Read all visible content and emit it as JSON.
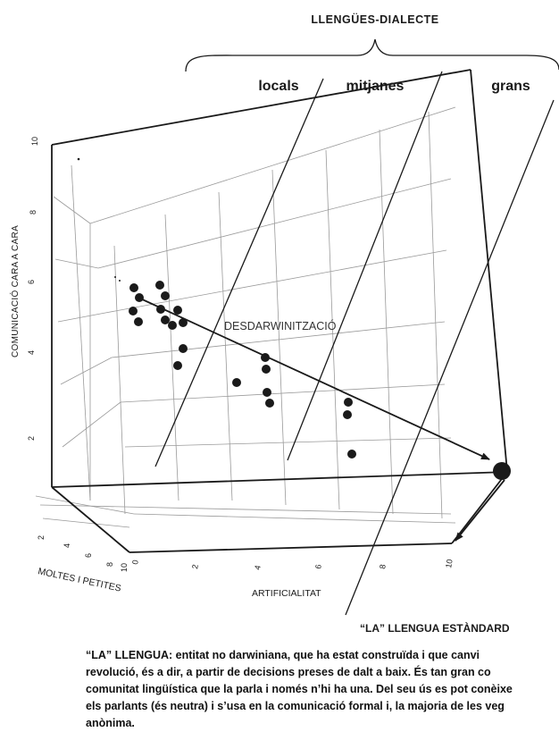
{
  "header": {
    "group_label": "LLENGÜES-DIALECTE",
    "category_locals": "locals",
    "category_mitjanes": "mitjanes",
    "category_grans": "grans"
  },
  "axes": {
    "vertical_label": "COMUNICACIÓ CARA A CARA",
    "depth_label": "MOLTES I PETITES",
    "horizontal_label": "ARTIFICIALITAT",
    "vertical_ticks": [
      "10",
      "8",
      "6",
      "4",
      "2"
    ],
    "depth_ticks": [
      "2",
      "4",
      "6",
      "8",
      "10"
    ],
    "horizontal_ticks": [
      "0",
      "2",
      "4",
      "6",
      "8",
      "10"
    ]
  },
  "annotations": {
    "trend_label": "DESDARWINITZACIÓ",
    "standard_label": "“LA” LLENGUA ESTÀNDARD"
  },
  "caption": {
    "lines": [
      "“LA” LLENGUA: entitat no darwiniana, que ha estat construïda i que canvi",
      "revolució, és a dir, a partir de decisions preses de dalt a baix. És tan gran co",
      "comunitat lingüística que la parla i només n’hi ha una. Del seu ús es pot conèixe",
      "els parlants (és neutra) i s’usa en la comunicació formal i, la majoria de les veg",
      "anònima."
    ]
  },
  "colors": {
    "ink": "#1a1a1a",
    "grid": "#9a9a9a",
    "background": "#ffffff"
  }
}
